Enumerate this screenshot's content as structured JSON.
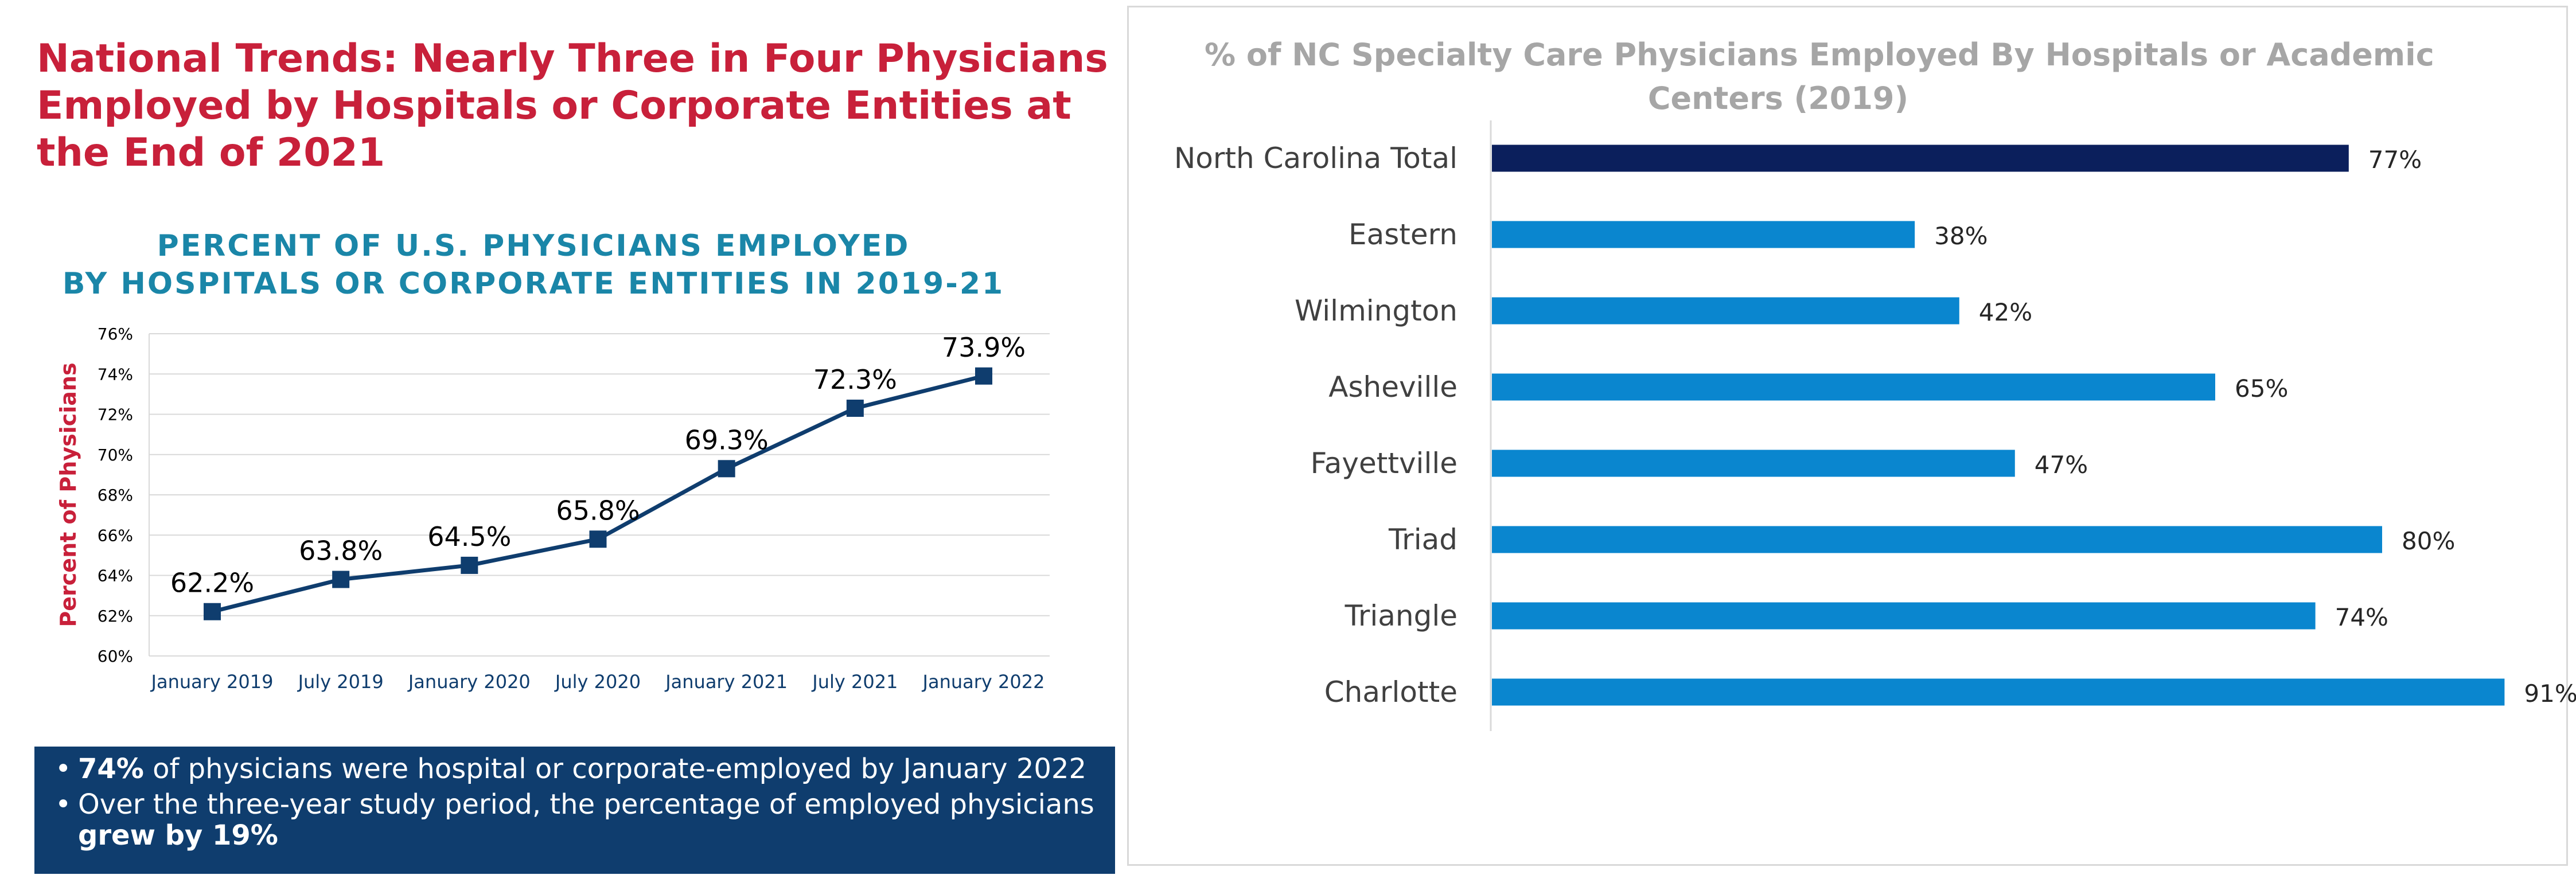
{
  "left": {
    "title_lines": [
      "National Trends: Nearly Three in Four Physicians",
      "Employed by Hospitals or Corporate Entities at",
      "the End of 2021"
    ],
    "bullets": [
      {
        "bold_pre": "74%",
        "text": " of physicians were hospital or corporate-employed by January 2022",
        "bold_post": ""
      },
      {
        "bold_pre": "",
        "text": "Over the three-year study period, the percentage of employed physicians ",
        "bold_post": "grew by 19%"
      }
    ],
    "bullet_glyph": "•"
  },
  "colors": {
    "title_red": "#c8203a",
    "line_title_teal": "#1a86a8",
    "line_series": "#0f3d6e",
    "bullet_box": "#0f3d6e",
    "bar_highlight": "#0b1f5c",
    "bar_regular": "#0a86cf",
    "bar_title_gray": "#a6a6a6"
  },
  "chart_data": [
    {
      "type": "line",
      "title_lines": [
        "PERCENT OF U.S. PHYSICIANS EMPLOYED",
        "BY HOSPITALS OR CORPORATE ENTITIES IN 2019-21"
      ],
      "xlabel": "",
      "ylabel": "Percent of Physicians",
      "categories": [
        "January 2019",
        "July 2019",
        "January 2020",
        "July 2020",
        "January 2021",
        "July 2021",
        "January 2022"
      ],
      "values": [
        62.2,
        63.8,
        64.5,
        65.8,
        69.3,
        72.3,
        73.9
      ],
      "data_labels": [
        "62.2%",
        "63.8%",
        "64.5%",
        "65.8%",
        "69.3%",
        "72.3%",
        "73.9%"
      ],
      "ylim": [
        60,
        76
      ],
      "yticks": [
        60,
        62,
        64,
        66,
        68,
        70,
        72,
        74,
        76
      ],
      "ytick_labels": [
        "60%",
        "62%",
        "64%",
        "66%",
        "68%",
        "70%",
        "72%",
        "74%",
        "76%"
      ],
      "grid": true,
      "marker": "square"
    },
    {
      "type": "bar",
      "orientation": "horizontal",
      "title_lines": [
        "% of NC Specialty Care Physicians Employed By Hospitals or Academic",
        "Centers (2019)"
      ],
      "categories": [
        "North Carolina Total",
        "Eastern",
        "Wilmington",
        "Asheville",
        "Fayettville",
        "Triad",
        "Triangle",
        "Charlotte"
      ],
      "values": [
        77,
        38,
        42,
        65,
        47,
        80,
        74,
        91
      ],
      "data_labels": [
        "77%",
        "38%",
        "42%",
        "65%",
        "47%",
        "80%",
        "74%",
        "91%"
      ],
      "highlight_index": 0,
      "xlim": [
        0,
        100
      ],
      "grid": false
    }
  ]
}
